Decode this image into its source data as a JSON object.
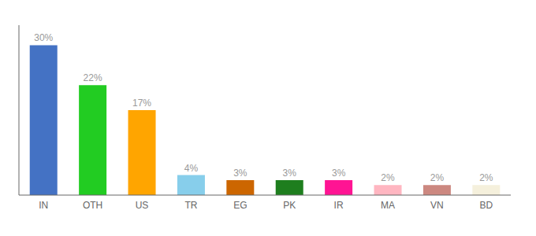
{
  "chart_data": {
    "type": "bar",
    "categories": [
      "IN",
      "OTH",
      "US",
      "TR",
      "EG",
      "PK",
      "IR",
      "MA",
      "VN",
      "BD"
    ],
    "values": [
      30,
      22,
      17,
      4,
      3,
      3,
      3,
      2,
      2,
      2
    ],
    "value_labels": [
      "30%",
      "22%",
      "17%",
      "4%",
      "3%",
      "3%",
      "3%",
      "2%",
      "2%",
      "2%"
    ],
    "colors": [
      "#4472C4",
      "#22CC22",
      "#FFA500",
      "#87CEEB",
      "#CC6600",
      "#1E7E1E",
      "#FF1493",
      "#FFB6C1",
      "#CC8880",
      "#F5F0DC"
    ],
    "ylim": [
      0,
      34
    ],
    "data_labels": true,
    "tick_labels": "x"
  }
}
